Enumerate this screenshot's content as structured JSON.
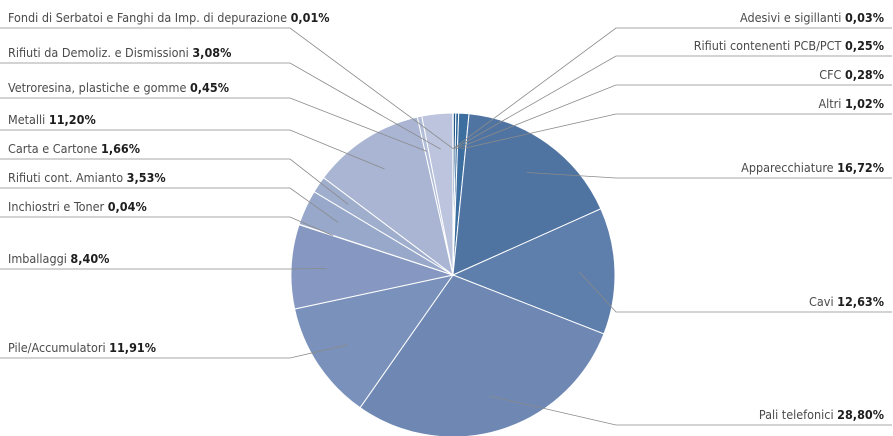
{
  "chart_data": {
    "type": "pie",
    "title": "",
    "slices": [
      {
        "label": "Adesivi e sigillanti",
        "value_text": "0,03%",
        "value": 0.03,
        "color": "#1d4d7a"
      },
      {
        "label": "Rifiuti contenenti PCB/PCT",
        "value_text": "0,25%",
        "value": 0.25,
        "color": "#23588a"
      },
      {
        "label": "CFC",
        "value_text": "0,28%",
        "value": 0.28,
        "color": "#2a6296"
      },
      {
        "label": "Altri",
        "value_text": "1,02%",
        "value": 1.02,
        "color": "#3c6ea0"
      },
      {
        "label": "Apparecchiature",
        "value_text": "16,72%",
        "value": 16.72,
        "color": "#5074a2"
      },
      {
        "label": "Cavi",
        "value_text": "12,63%",
        "value": 12.63,
        "color": "#5e7eab"
      },
      {
        "label": "Pali telefonici",
        "value_text": "28,80%",
        "value": 28.8,
        "color": "#6e88b3"
      },
      {
        "label": "Pile/Accumulatori",
        "value_text": "11,91%",
        "value": 11.91,
        "color": "#7a92bb"
      },
      {
        "label": "Imballaggi",
        "value_text": "8,40%",
        "value": 8.4,
        "color": "#8698c1"
      },
      {
        "label": "Inchiostri e Toner",
        "value_text": "0,04%",
        "value": 0.04,
        "color": "#90a1c6"
      },
      {
        "label": "Rifiuti cont. Amianto",
        "value_text": "3,53%",
        "value": 3.53,
        "color": "#98a8ca"
      },
      {
        "label": "Carta e Cartone",
        "value_text": "1,66%",
        "value": 1.66,
        "color": "#a0aece"
      },
      {
        "label": "Metalli",
        "value_text": "11,20%",
        "value": 11.2,
        "color": "#a9b5d3"
      },
      {
        "label": "Vetroresina, plastiche e gomme",
        "value_text": "0,45%",
        "value": 0.45,
        "color": "#b2bdd8"
      },
      {
        "label": "Rifiuti da Demoliz. e Dismissioni",
        "value_text": "3,08%",
        "value": 3.08,
        "color": "#bcc5dd"
      },
      {
        "label": "Fondi di Serbatoi e Fanghi da Imp. di depurazione",
        "value_text": "0,01%",
        "value": 0.01,
        "color": "#c6cde3"
      }
    ]
  }
}
